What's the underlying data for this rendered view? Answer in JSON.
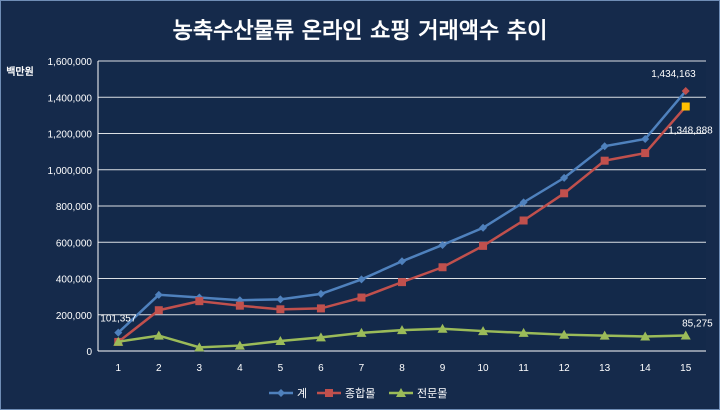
{
  "chart_data": {
    "type": "line",
    "title": "농축수산물류 온라인 쇼핑 거래액수 추이",
    "ylabel": "백만원",
    "ylim": [
      0,
      1600000
    ],
    "yticks": [
      0,
      200000,
      400000,
      600000,
      800000,
      1000000,
      1200000,
      1400000,
      1600000
    ],
    "ytick_labels": [
      "0",
      "200,000",
      "400,000",
      "600,000",
      "800,000",
      "1,000,000",
      "1,200,000",
      "1,400,000",
      "1,600,000"
    ],
    "categories": [
      "1",
      "2",
      "3",
      "4",
      "5",
      "6",
      "7",
      "8",
      "9",
      "10",
      "11",
      "12",
      "13",
      "14",
      "15"
    ],
    "grid": true,
    "legend_position": "bottom",
    "series": [
      {
        "name": "계",
        "color": "#4f81bd",
        "marker": "diamond",
        "values": [
          101357,
          310000,
          295000,
          280000,
          285000,
          315000,
          395000,
          495000,
          585000,
          680000,
          820000,
          955000,
          1130000,
          1170000,
          1434163
        ]
      },
      {
        "name": "종합몰",
        "color": "#c0504d",
        "marker": "square",
        "values": [
          50000,
          225000,
          275000,
          250000,
          230000,
          235000,
          295000,
          380000,
          462000,
          580000,
          720000,
          870000,
          1050000,
          1092000,
          1348888
        ]
      },
      {
        "name": "전문몰",
        "color": "#9bbb59",
        "marker": "triangle",
        "values": [
          51357,
          85000,
          20000,
          30000,
          55000,
          75000,
          100000,
          115000,
          123000,
          110000,
          100000,
          90000,
          85000,
          80000,
          85275
        ]
      }
    ],
    "annotations": [
      {
        "text": "101,357",
        "series": 0,
        "index": 0,
        "anchor": "above-right"
      },
      {
        "text": "1,434,163",
        "series": 0,
        "index": 14,
        "anchor": "above-left"
      },
      {
        "text": "1,348,888",
        "series": 1,
        "index": 14,
        "anchor": "below"
      },
      {
        "text": "85,275",
        "series": 2,
        "index": 14,
        "anchor": "above"
      }
    ]
  }
}
